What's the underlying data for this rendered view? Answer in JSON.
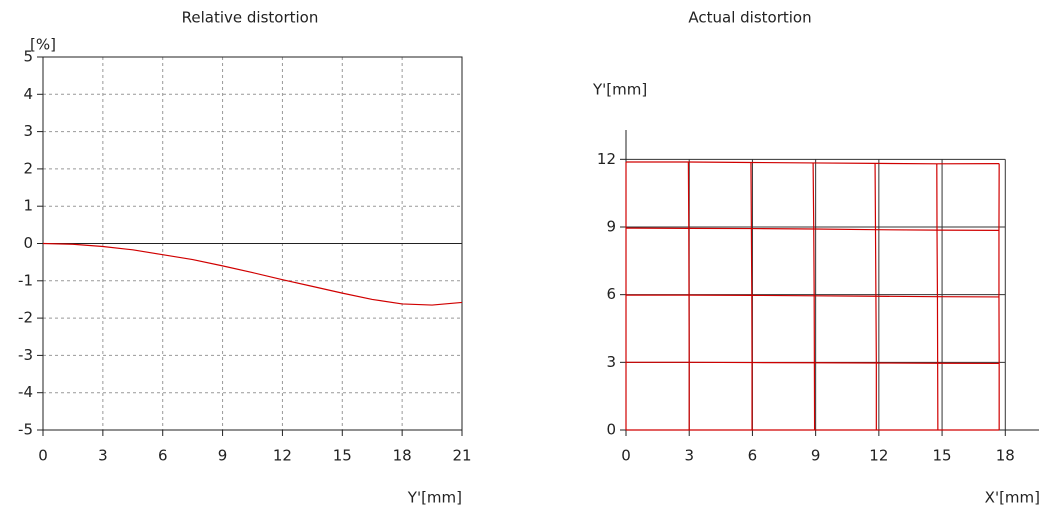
{
  "chart_data": [
    {
      "type": "line",
      "title": "Relative distortion",
      "ylabel": "[%]",
      "xlabel": "Y'[mm]",
      "x": [
        0,
        1.5,
        3,
        4.5,
        6,
        7.5,
        9,
        10.5,
        12,
        13.5,
        15,
        16.5,
        18,
        19.5,
        21
      ],
      "values": [
        0,
        -0.02,
        -0.08,
        -0.17,
        -0.3,
        -0.43,
        -0.6,
        -0.78,
        -0.97,
        -1.15,
        -1.33,
        -1.5,
        -1.62,
        -1.65,
        -1.58
      ],
      "color": "#d00000",
      "xlim": [
        0,
        21
      ],
      "xticks": [
        0,
        3,
        6,
        9,
        12,
        15,
        18,
        21
      ],
      "ylim": [
        -5,
        5
      ],
      "yticks": [
        -5,
        -4,
        -3,
        -2,
        -1,
        0,
        1,
        2,
        3,
        4,
        5
      ],
      "grid": true,
      "grid_style": "dashed"
    },
    {
      "type": "line",
      "title": "Actual distortion",
      "ylabel": "Y'[mm]",
      "xlabel": "X'[mm]",
      "color": "#d00000",
      "series": [
        {
          "x": [
            0,
            3,
            5.98,
            8.95,
            11.88,
            14.8,
            17.71
          ],
          "values": [
            0,
            0,
            0,
            0,
            0,
            0,
            0
          ]
        },
        {
          "x": [
            0,
            3,
            5.98,
            8.94,
            11.88,
            14.79,
            17.71
          ],
          "values": [
            3,
            3,
            2.99,
            2.98,
            2.97,
            2.96,
            2.95
          ]
        },
        {
          "x": [
            0,
            2.99,
            5.97,
            8.93,
            11.86,
            14.78,
            17.7
          ],
          "values": [
            5.98,
            5.98,
            5.97,
            5.95,
            5.93,
            5.91,
            5.9
          ]
        },
        {
          "x": [
            0,
            2.98,
            5.95,
            8.91,
            11.84,
            14.76,
            17.7
          ],
          "values": [
            8.95,
            8.94,
            8.93,
            8.91,
            8.88,
            8.86,
            8.85
          ]
        },
        {
          "x": [
            0,
            2.96,
            5.93,
            8.88,
            11.82,
            14.75,
            17.71
          ],
          "values": [
            11.88,
            11.88,
            11.86,
            11.84,
            11.82,
            11.8,
            11.81
          ]
        }
      ],
      "xlim": [
        0,
        19.6
      ],
      "xticks": [
        0,
        3,
        6,
        9,
        12,
        15,
        18
      ],
      "ylim": [
        0,
        13.3
      ],
      "yticks": [
        0,
        3,
        6,
        9,
        12
      ],
      "grid": true,
      "grid_style": "solid"
    }
  ]
}
